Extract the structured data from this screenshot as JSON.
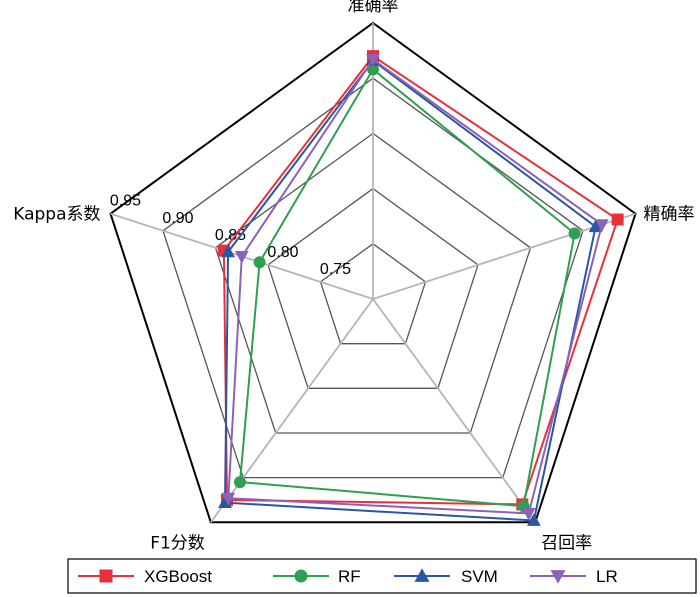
{
  "chart_data": {
    "type": "radar",
    "axes": [
      "准确率",
      "精确率",
      "召回率",
      "F1分数",
      "Kappa系数"
    ],
    "rlim": [
      0.7,
      0.95
    ],
    "ticks": [
      0.75,
      0.8,
      0.85,
      0.9,
      0.95
    ],
    "tick_labels": [
      "0.75",
      "0.80",
      "0.85",
      "0.90",
      "0.95"
    ],
    "grid": true,
    "legend_position": "bottom",
    "series": [
      {
        "name": "XGBoost",
        "values": [
          0.92,
          0.933,
          0.93,
          0.925,
          0.842
        ],
        "color": "#e8303a",
        "marker": "square"
      },
      {
        "name": "RF",
        "values": [
          0.908,
          0.892,
          0.932,
          0.905,
          0.808
        ],
        "color": "#2ea04f",
        "marker": "circle"
      },
      {
        "name": "SVM",
        "values": [
          0.916,
          0.912,
          0.948,
          0.928,
          0.838
        ],
        "color": "#2c56a4",
        "marker": "triangle-up"
      },
      {
        "name": "LR",
        "values": [
          0.917,
          0.918,
          0.94,
          0.923,
          0.825
        ],
        "color": "#8a63b8",
        "marker": "triangle-down"
      }
    ]
  }
}
